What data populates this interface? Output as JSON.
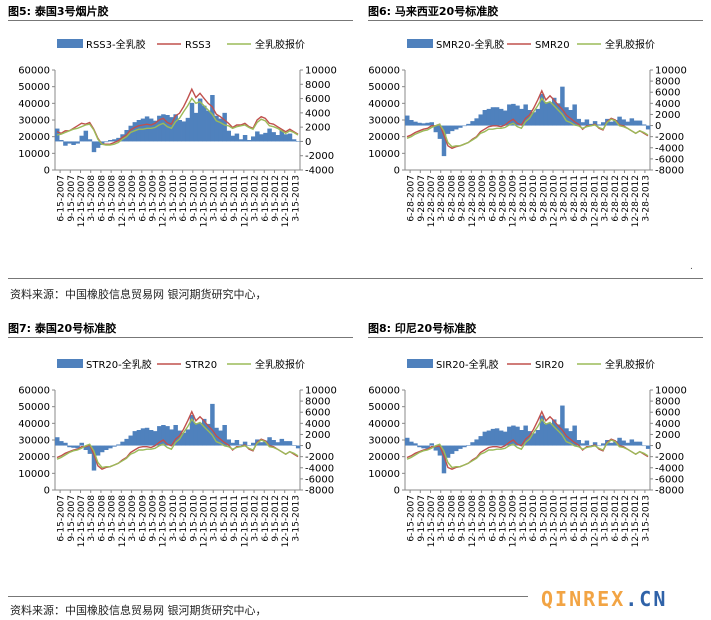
{
  "page": {
    "source_text_top": "资料来源：中国橡胶信息贸易网  银河期货研究中心，",
    "source_text_bottom": "资料来源：中国橡胶信息贸易网  银河期货研究中心，",
    "watermark": {
      "main": "QINREX",
      "dot": ".",
      "suffix": "CN"
    },
    "colors": {
      "spread_bar": "#4f81bd",
      "grade_line": "#c0504d",
      "latex_line": "#9bbb59"
    }
  },
  "chart_data": [
    {
      "type": "bar+line",
      "panel_label": "图5:",
      "title": "泰国3号烟片胶",
      "legend": [
        "RSS3-全乳胶",
        "RSS3",
        "全乳胶报价"
      ],
      "left_axis": {
        "min": 0,
        "max": 60000,
        "ticks": [
          0,
          10000,
          20000,
          30000,
          40000,
          50000,
          60000
        ]
      },
      "right_axis": {
        "min": -4000,
        "max": 10000,
        "ticks": [
          -4000,
          -2000,
          0,
          2000,
          4000,
          6000,
          8000,
          10000
        ]
      },
      "x_labels": [
        "6-15-2007",
        "9-15-2007",
        "12-15-2007",
        "3-15-2008",
        "6-15-2008",
        "9-15-2008",
        "12-15-2008",
        "3-15-2009",
        "6-15-2009",
        "9-15-2009",
        "12-15-2009",
        "3-15-2010",
        "6-15-2010",
        "9-15-2010",
        "12-15-2010",
        "3-15-2011",
        "6-15-2011",
        "9-15-2011",
        "12-15-2011",
        "3-15-2012",
        "6-15-2012",
        "9-15-2012",
        "12-15-2012",
        "3-15-2013"
      ],
      "spread": [
        1800,
        200,
        -600,
        -300,
        -500,
        -300,
        800,
        1500,
        300,
        -1500,
        -900,
        -500,
        -100,
        200,
        300,
        500,
        1000,
        1600,
        2200,
        2700,
        3000,
        3200,
        3500,
        3200,
        2900,
        3600,
        3800,
        3700,
        3400,
        3800,
        3000,
        2800,
        3300,
        5400,
        4000,
        6000,
        5000,
        4300,
        6500,
        3600,
        3200,
        4000,
        1500,
        800,
        1100,
        300,
        900,
        200,
        700,
        1400,
        1000,
        1200,
        1800,
        1300,
        900,
        1600,
        1000,
        1100,
        300,
        0
      ],
      "grade_price": [
        23000,
        22000,
        23500,
        23500,
        25000,
        26500,
        28000,
        27500,
        28500,
        24500,
        19000,
        15500,
        15500,
        15500,
        16500,
        17500,
        19500,
        21000,
        24000,
        25500,
        26500,
        27000,
        27500,
        27000,
        28000,
        30000,
        31000,
        28500,
        27500,
        32500,
        34000,
        38000,
        43000,
        48500,
        43500,
        46000,
        43000,
        40000,
        38000,
        33500,
        32000,
        30000,
        28000,
        25500,
        27000,
        27000,
        28000,
        26000,
        25000,
        30000,
        32000,
        31000,
        28000,
        27500,
        26000,
        24500,
        23000,
        24500,
        23000,
        21500
      ],
      "latex_price": [
        21000,
        21500,
        22500,
        23500,
        24500,
        25000,
        26000,
        27000,
        27500,
        24000,
        18500,
        15500,
        15000,
        15000,
        15500,
        16500,
        18500,
        20000,
        22500,
        23500,
        24500,
        24500,
        25000,
        25000,
        25500,
        27000,
        28000,
        26000,
        25000,
        29000,
        31000,
        35000,
        38500,
        43000,
        40000,
        41000,
        38500,
        36000,
        33500,
        29500,
        28500,
        27000,
        26500,
        25000,
        26000,
        26500,
        27000,
        25500,
        24500,
        28500,
        30500,
        29500,
        26500,
        26000,
        25000,
        23500,
        22000,
        23500,
        22500,
        21000
      ]
    },
    {
      "type": "bar+line",
      "panel_label": "图6:",
      "title": "马来西亚20号标准胶",
      "legend": [
        "SMR20-全乳胶",
        "SMR20",
        "全乳胶报价"
      ],
      "left_axis": {
        "min": 0,
        "max": 60000,
        "ticks": [
          0,
          10000,
          20000,
          30000,
          40000,
          50000,
          60000
        ]
      },
      "right_axis": {
        "min": -8000,
        "max": 10000,
        "ticks": [
          -8000,
          -6000,
          -4000,
          -2000,
          0,
          2000,
          4000,
          6000,
          8000,
          10000
        ]
      },
      "x_labels": [
        "6-28-2007",
        "9-28-2007",
        "12-28-2007",
        "3-28-2008",
        "6-28-2008",
        "9-28-2008",
        "12-28-2008",
        "3-28-2009",
        "6-28-2009",
        "9-28-2009",
        "12-28-2009",
        "3-28-2010",
        "6-28-2010",
        "9-28-2010",
        "12-28-2010",
        "3-28-2011",
        "6-28-2011",
        "9-28-2011",
        "12-28-2011",
        "3-28-2012",
        "6-28-2012",
        "9-28-2012",
        "12-28-2012",
        "3-28-2013"
      ],
      "spread": [
        1800,
        1000,
        700,
        500,
        400,
        500,
        600,
        -1200,
        -2400,
        -5500,
        -1500,
        -1000,
        -700,
        -400,
        -100,
        300,
        800,
        1300,
        2000,
        2800,
        3000,
        3300,
        3300,
        3000,
        2700,
        3800,
        3900,
        3600,
        3000,
        3800,
        2800,
        2400,
        3000,
        5700,
        4200,
        4200,
        5000,
        4000,
        7000,
        3300,
        2800,
        3800,
        1200,
        600,
        1100,
        300,
        800,
        200,
        600,
        1200,
        700,
        1000,
        1600,
        1100,
        700,
        1300,
        900,
        900,
        200,
        -700
      ],
      "grade_price": [
        20000,
        21000,
        22500,
        23500,
        24500,
        25000,
        26500,
        26500,
        27500,
        21000,
        14500,
        13000,
        14000,
        14500,
        15500,
        16500,
        18500,
        20000,
        23000,
        24500,
        26000,
        26500,
        26500,
        26000,
        27000,
        29000,
        30500,
        28000,
        27000,
        31000,
        33000,
        37000,
        42000,
        47500,
        42000,
        44500,
        42000,
        39000,
        36500,
        33000,
        31000,
        29000,
        27500,
        24500,
        26500,
        26500,
        27500,
        25000,
        24000,
        29000,
        31000,
        30000,
        27000,
        26500,
        25000,
        23500,
        22000,
        23500,
        22000,
        20500
      ],
      "latex_price": [
        19000,
        20000,
        21500,
        22500,
        23500,
        24000,
        25500,
        26500,
        27500,
        23500,
        16500,
        14000,
        14500,
        14500,
        15500,
        16500,
        18000,
        19500,
        22000,
        23000,
        24500,
        24500,
        25000,
        25000,
        25500,
        27000,
        28000,
        26000,
        25000,
        29000,
        31000,
        35000,
        38500,
        43000,
        40000,
        41000,
        38500,
        36000,
        33500,
        29500,
        28500,
        27000,
        26500,
        25000,
        26000,
        26500,
        27000,
        25500,
        24500,
        28500,
        30500,
        29500,
        26500,
        26000,
        25000,
        23500,
        22000,
        23500,
        22500,
        21000
      ]
    },
    {
      "type": "bar+line",
      "panel_label": "图7:",
      "title": "泰国20号标准胶",
      "legend": [
        "STR20-全乳胶",
        "STR20",
        "全乳胶报价"
      ],
      "left_axis": {
        "min": 0,
        "max": 60000,
        "ticks": [
          0,
          10000,
          20000,
          30000,
          40000,
          50000,
          60000
        ]
      },
      "right_axis": {
        "min": -8000,
        "max": 10000,
        "ticks": [
          -8000,
          -6000,
          -4000,
          -2000,
          0,
          2000,
          4000,
          6000,
          8000,
          10000
        ]
      },
      "x_labels": [
        "6-15-2007",
        "9-15-2007",
        "12-15-2007",
        "3-15-2008",
        "6-15-2008",
        "9-15-2008",
        "12-15-2008",
        "3-15-2009",
        "6-15-2009",
        "9-15-2009",
        "12-15-2009",
        "3-15-2010",
        "6-15-2010",
        "9-15-2010",
        "12-15-2010",
        "3-15-2011",
        "6-15-2011",
        "9-15-2011",
        "12-15-2011",
        "3-15-2012",
        "6-15-2012",
        "9-15-2012",
        "12-15-2012",
        "3-15-2013"
      ],
      "spread": [
        1500,
        800,
        500,
        -300,
        -400,
        -500,
        500,
        -800,
        -1500,
        -4500,
        -1800,
        -1200,
        -800,
        -500,
        -200,
        200,
        700,
        1200,
        1800,
        2600,
        2800,
        3100,
        3200,
        2800,
        2600,
        3500,
        3700,
        3500,
        2900,
        3700,
        2700,
        2300,
        2900,
        5500,
        4000,
        4100,
        4800,
        3900,
        7500,
        3200,
        2700,
        3700,
        1100,
        500,
        1000,
        200,
        700,
        100,
        500,
        1100,
        600,
        900,
        1500,
        1000,
        600,
        1200,
        800,
        800,
        100,
        -500
      ],
      "grade_price": [
        19500,
        20500,
        22000,
        23000,
        24000,
        24500,
        26000,
        26000,
        27000,
        21500,
        14500,
        12500,
        13500,
        14000,
        15000,
        16000,
        18000,
        19500,
        22500,
        24000,
        25500,
        26000,
        26000,
        25500,
        26500,
        28500,
        30000,
        27500,
        26500,
        30500,
        32500,
        36500,
        41500,
        47000,
        41500,
        44000,
        41500,
        38500,
        36000,
        32500,
        30500,
        28500,
        27000,
        24000,
        26000,
        26000,
        27000,
        24500,
        23500,
        28500,
        30500,
        29500,
        26500,
        26000,
        24500,
        23000,
        21500,
        23000,
        21500,
        20000
      ],
      "latex_price": [
        18500,
        19500,
        21000,
        22500,
        23500,
        24000,
        25000,
        26500,
        27500,
        23500,
        16500,
        13500,
        14000,
        14000,
        15000,
        16000,
        17500,
        19000,
        21500,
        22500,
        24000,
        24000,
        24500,
        24500,
        25000,
        26500,
        27500,
        25500,
        24500,
        28500,
        30500,
        34500,
        38000,
        42500,
        39500,
        40500,
        38000,
        35500,
        33000,
        29000,
        28000,
        26500,
        26000,
        24500,
        25500,
        26000,
        26500,
        25000,
        24000,
        28000,
        30000,
        29000,
        26000,
        25500,
        24500,
        23000,
        21500,
        23000,
        22000,
        20500
      ]
    },
    {
      "type": "bar+line",
      "panel_label": "图8:",
      "title": "印尼20号标准胶",
      "legend": [
        "SIR20-全乳胶",
        "SIR20",
        "全乳胶报价"
      ],
      "left_axis": {
        "min": 0,
        "max": 60000,
        "ticks": [
          0,
          10000,
          20000,
          30000,
          40000,
          50000,
          60000
        ]
      },
      "right_axis": {
        "min": -8000,
        "max": 10000,
        "ticks": [
          -8000,
          -6000,
          -4000,
          -2000,
          0,
          2000,
          4000,
          6000,
          8000,
          10000
        ]
      },
      "x_labels": [
        "6-15-2007",
        "9-15-2007",
        "12-15-2007",
        "3-15-2008",
        "6-15-2008",
        "9-15-2008",
        "12-15-2008",
        "3-15-2009",
        "6-15-2009",
        "9-15-2009",
        "12-15-2009",
        "3-15-2010",
        "6-15-2010",
        "9-15-2010",
        "12-15-2010",
        "3-15-2011",
        "6-15-2011",
        "9-15-2011",
        "12-15-2011",
        "3-15-2012",
        "6-15-2012",
        "9-15-2012",
        "12-15-2012",
        "3-15-2013"
      ],
      "spread": [
        1400,
        700,
        400,
        -300,
        -500,
        -600,
        400,
        -900,
        -1800,
        -5000,
        -2200,
        -1500,
        -1000,
        -600,
        -300,
        100,
        600,
        1100,
        1700,
        2500,
        2700,
        3000,
        3100,
        2700,
        2500,
        3400,
        3600,
        3400,
        2800,
        3600,
        2600,
        2200,
        2800,
        5400,
        3900,
        4000,
        4700,
        3800,
        7200,
        3100,
        2600,
        3600,
        1000,
        400,
        900,
        100,
        600,
        0,
        400,
        1000,
        500,
        800,
        1400,
        900,
        500,
        1100,
        700,
        700,
        0,
        -600
      ],
      "grade_price": [
        19500,
        20500,
        22000,
        23000,
        24000,
        24500,
        26000,
        26000,
        26500,
        20500,
        13500,
        12500,
        13500,
        14000,
        15000,
        16000,
        18000,
        19500,
        22500,
        24000,
        25500,
        26000,
        26000,
        25500,
        26500,
        28500,
        30000,
        27500,
        26500,
        30500,
        32500,
        36500,
        41500,
        47000,
        41500,
        44000,
        41500,
        38500,
        36000,
        32500,
        30500,
        28500,
        27000,
        24000,
        26000,
        26000,
        27000,
        24500,
        23500,
        28500,
        30500,
        29500,
        26500,
        26000,
        24500,
        23000,
        21500,
        23000,
        21500,
        20000
      ],
      "latex_price": [
        18500,
        19500,
        21000,
        22500,
        23500,
        24000,
        25000,
        26500,
        27500,
        23500,
        16500,
        13500,
        14000,
        14000,
        15000,
        16000,
        17500,
        19000,
        21500,
        22500,
        24000,
        24000,
        24500,
        24500,
        25000,
        26500,
        27500,
        25500,
        24500,
        28500,
        30500,
        34500,
        38000,
        42500,
        39500,
        40500,
        38000,
        35500,
        33000,
        29000,
        28000,
        26500,
        26000,
        24500,
        25500,
        26000,
        26500,
        25000,
        24000,
        28000,
        30000,
        29000,
        26000,
        25500,
        24500,
        23000,
        21500,
        23000,
        22000,
        20500
      ]
    }
  ]
}
